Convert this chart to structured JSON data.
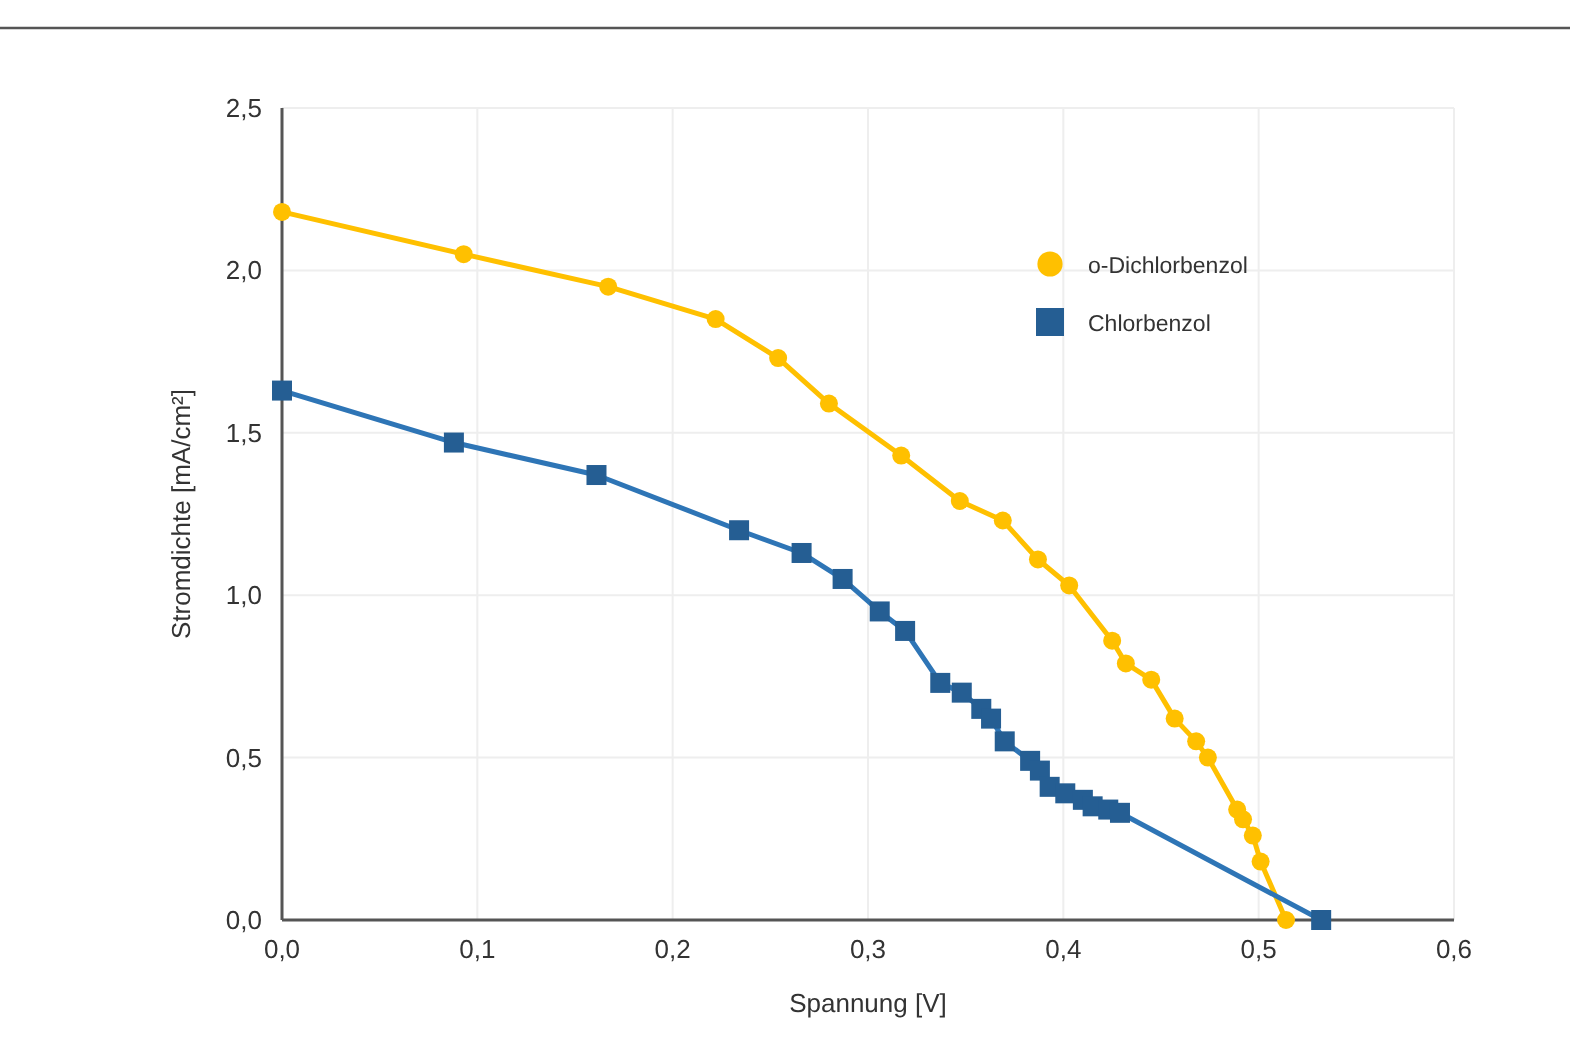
{
  "chart_data": {
    "type": "line",
    "xlabel": "Spannung [V]",
    "ylabel": "Stromdichte [mA/cm²]",
    "xlim": [
      0,
      0.6
    ],
    "ylim": [
      0,
      2.5
    ],
    "xticks": [
      {
        "value": 0,
        "label": "0,0"
      },
      {
        "value": 0.1,
        "label": "0,1"
      },
      {
        "value": 0.2,
        "label": "0,2"
      },
      {
        "value": 0.3,
        "label": "0,3"
      },
      {
        "value": 0.4,
        "label": "0,4"
      },
      {
        "value": 0.5,
        "label": "0,5"
      },
      {
        "value": 0.6,
        "label": "0,6"
      }
    ],
    "yticks": [
      {
        "value": 0,
        "label": "0,0"
      },
      {
        "value": 0.5,
        "label": "0,5"
      },
      {
        "value": 1,
        "label": "1,0"
      },
      {
        "value": 1.5,
        "label": "1,5"
      },
      {
        "value": 2,
        "label": "2,0"
      },
      {
        "value": 2.5,
        "label": "2,5"
      }
    ],
    "grid": true,
    "legend": "top right",
    "series": [
      {
        "name": "o-Dichlorbenzol",
        "color": "#ffc000",
        "marker": "circle",
        "x": [
          0,
          0.093,
          0.167,
          0.222,
          0.254,
          0.28,
          0.317,
          0.347,
          0.369,
          0.387,
          0.403,
          0.425,
          0.432,
          0.445,
          0.457,
          0.468,
          0.474,
          0.489,
          0.492,
          0.497,
          0.501,
          0.514
        ],
        "values": [
          2.18,
          2.05,
          1.95,
          1.85,
          1.73,
          1.59,
          1.43,
          1.29,
          1.23,
          1.11,
          1.03,
          0.86,
          0.79,
          0.74,
          0.62,
          0.55,
          0.5,
          0.34,
          0.31,
          0.26,
          0.18,
          0
        ]
      },
      {
        "name": "Chlorbenzol",
        "color": "#2e75b6",
        "marker": "square",
        "x": [
          0,
          0.088,
          0.161,
          0.234,
          0.266,
          0.287,
          0.306,
          0.319,
          0.337,
          0.348,
          0.358,
          0.363,
          0.37,
          0.383,
          0.388,
          0.393,
          0.401,
          0.41,
          0.415,
          0.423,
          0.429,
          0.532
        ],
        "values": [
          1.63,
          1.47,
          1.37,
          1.2,
          1.13,
          1.05,
          0.95,
          0.89,
          0.73,
          0.7,
          0.65,
          0.62,
          0.55,
          0.49,
          0.46,
          0.41,
          0.39,
          0.37,
          0.35,
          0.34,
          0.33,
          0
        ]
      }
    ]
  }
}
